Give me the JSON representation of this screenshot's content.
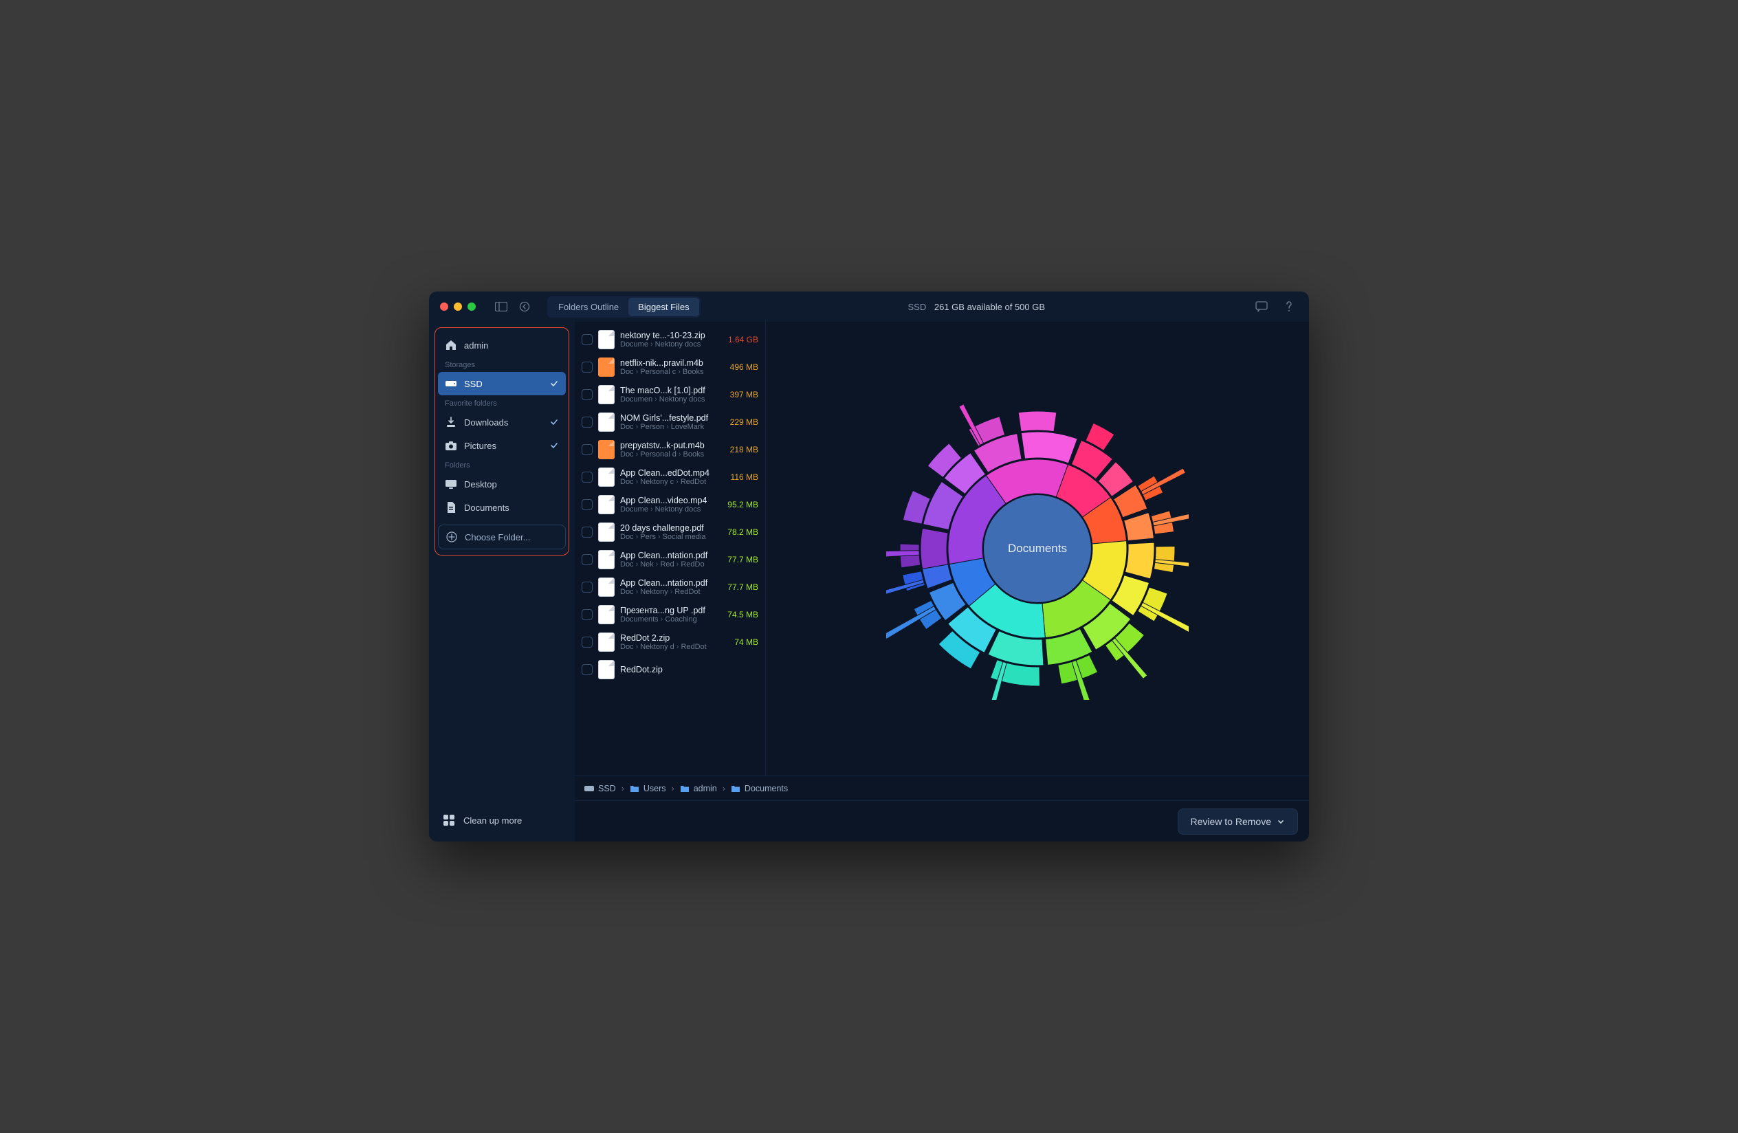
{
  "titlebar": {
    "tabs": {
      "outline": "Folders Outline",
      "biggest": "Biggest Files",
      "active": "biggest"
    },
    "storage_label": "SSD",
    "storage_status": "261 GB available of 500 GB"
  },
  "sidebar": {
    "user": {
      "label": "admin"
    },
    "sections": {
      "storages_label": "Storages",
      "favorites_label": "Favorite folders",
      "folders_label": "Folders"
    },
    "storages": [
      {
        "label": "SSD",
        "selected": true,
        "checked": true
      }
    ],
    "favorites": [
      {
        "label": "Downloads",
        "checked": true
      },
      {
        "label": "Pictures",
        "checked": true
      }
    ],
    "folders": [
      {
        "label": "Desktop"
      },
      {
        "label": "Documents"
      }
    ],
    "choose_folder": "Choose Folder...",
    "footer": "Clean up more"
  },
  "files": [
    {
      "name": "nektony te...-10-23.zip",
      "path": [
        "Docume",
        "Nektony docs"
      ],
      "size": "1.64 GB",
      "size_color": "#e84a2f",
      "icon": "zip"
    },
    {
      "name": "netflix-nik...pravil.m4b",
      "path": [
        "Doc",
        "Personal c",
        "Books"
      ],
      "size": "496 MB",
      "size_color": "#e8a62f",
      "icon": "orange"
    },
    {
      "name": "The macO...k [1.0].pdf",
      "path": [
        "Documen",
        "Nektony docs"
      ],
      "size": "397 MB",
      "size_color": "#e8a62f",
      "icon": "pdf"
    },
    {
      "name": "NOM Girls'...festyle.pdf",
      "path": [
        "Doc",
        "Person",
        "LoveMark"
      ],
      "size": "229 MB",
      "size_color": "#e8a62f",
      "icon": "pdf"
    },
    {
      "name": "prepyatstv...k-put.m4b",
      "path": [
        "Doc",
        "Personal d",
        "Books"
      ],
      "size": "218 MB",
      "size_color": "#e8a62f",
      "icon": "orange"
    },
    {
      "name": "App Clean...edDot.mp4",
      "path": [
        "Doc",
        "Nektony c",
        "RedDot"
      ],
      "size": "116 MB",
      "size_color": "#e8a62f",
      "icon": "mp4"
    },
    {
      "name": "App Clean...video.mp4",
      "path": [
        "Docume",
        "Nektony docs"
      ],
      "size": "95.2 MB",
      "size_color": "#a6e82f",
      "icon": "mp4"
    },
    {
      "name": "20 days challenge.pdf",
      "path": [
        "Doc",
        "Pers",
        "Social media"
      ],
      "size": "78.2 MB",
      "size_color": "#a6e82f",
      "icon": "pdf"
    },
    {
      "name": "App Clean...ntation.pdf",
      "path": [
        "Doc",
        "Nek",
        "Red",
        "RedDo"
      ],
      "size": "77.7 MB",
      "size_color": "#a6e82f",
      "icon": "pdf"
    },
    {
      "name": "App Clean...ntation.pdf",
      "path": [
        "Doc",
        "Nektony",
        "RedDot"
      ],
      "size": "77.7 MB",
      "size_color": "#a6e82f",
      "icon": "pdf"
    },
    {
      "name": "Презента...ng UP .pdf",
      "path": [
        "Documents",
        "Coaching"
      ],
      "size": "74.5 MB",
      "size_color": "#a6e82f",
      "icon": "pdf"
    },
    {
      "name": "RedDot 2.zip",
      "path": [
        "Doc",
        "Nektony d",
        "RedDot"
      ],
      "size": "74 MB",
      "size_color": "#a6e82f",
      "icon": "zip"
    },
    {
      "name": "RedDot.zip",
      "path": [
        ""
      ],
      "size": "",
      "size_color": "#a6e82f",
      "icon": "zip"
    }
  ],
  "chart": {
    "type": "sunburst",
    "center_label": "Documents",
    "center_color": "#3e6db3",
    "background_color": "#0b1526",
    "rings": [
      {
        "inner_r": 80,
        "outer_r": 130,
        "segments": [
          {
            "start": -100,
            "end": -35,
            "color": "#9a3fe0"
          },
          {
            "start": -35,
            "end": 20,
            "color": "#e843cf"
          },
          {
            "start": 20,
            "end": 55,
            "color": "#ff2f7a"
          },
          {
            "start": 55,
            "end": 85,
            "color": "#ff5a2f"
          },
          {
            "start": 85,
            "end": 125,
            "color": "#f5e72f"
          },
          {
            "start": 125,
            "end": 175,
            "color": "#8fe82f"
          },
          {
            "start": 175,
            "end": 230,
            "color": "#2fe8d4"
          },
          {
            "start": 230,
            "end": 260,
            "color": "#2f7ae8"
          }
        ]
      },
      {
        "inner_r": 132,
        "outer_r": 170,
        "segments": [
          {
            "start": -100,
            "end": -80,
            "color": "#8a35cc"
          },
          {
            "start": -78,
            "end": -55,
            "color": "#a052e6"
          },
          {
            "start": -53,
            "end": -35,
            "color": "#c45ff0"
          },
          {
            "start": -33,
            "end": -10,
            "color": "#e04fd6"
          },
          {
            "start": -8,
            "end": 20,
            "color": "#f55ae0"
          },
          {
            "start": 22,
            "end": 40,
            "color": "#ff2f7a"
          },
          {
            "start": 42,
            "end": 55,
            "color": "#ff4a8c"
          },
          {
            "start": 57,
            "end": 70,
            "color": "#ff6a3a"
          },
          {
            "start": 72,
            "end": 85,
            "color": "#ff8a4a"
          },
          {
            "start": 87,
            "end": 105,
            "color": "#ffd23a"
          },
          {
            "start": 107,
            "end": 125,
            "color": "#f0f03a"
          },
          {
            "start": 127,
            "end": 150,
            "color": "#9af03a"
          },
          {
            "start": 152,
            "end": 175,
            "color": "#7ae83a"
          },
          {
            "start": 177,
            "end": 205,
            "color": "#3ae8c8"
          },
          {
            "start": 207,
            "end": 230,
            "color": "#3ad8e8"
          },
          {
            "start": 232,
            "end": 248,
            "color": "#3a88e8"
          },
          {
            "start": 250,
            "end": 260,
            "color": "#3a6ae8"
          }
        ]
      },
      {
        "inner_r": 172,
        "outer_r": 200,
        "segments": [
          {
            "start": -98,
            "end": -88,
            "color": "#7a2fb8"
          },
          {
            "start": -78,
            "end": -65,
            "color": "#9548da"
          },
          {
            "start": -53,
            "end": -40,
            "color": "#bb55e8"
          },
          {
            "start": -30,
            "end": -16,
            "color": "#d848cc"
          },
          {
            "start": -8,
            "end": 8,
            "color": "#ef50d5"
          },
          {
            "start": 24,
            "end": 34,
            "color": "#ff2a6e"
          },
          {
            "start": 58,
            "end": 66,
            "color": "#ff5a2a"
          },
          {
            "start": 74,
            "end": 83,
            "color": "#ff7a3a"
          },
          {
            "start": 89,
            "end": 100,
            "color": "#f5c82a"
          },
          {
            "start": 109,
            "end": 122,
            "color": "#e8e82a"
          },
          {
            "start": 129,
            "end": 145,
            "color": "#8ce82a"
          },
          {
            "start": 154,
            "end": 170,
            "color": "#6ee02a"
          },
          {
            "start": 179,
            "end": 200,
            "color": "#2ae0bc"
          },
          {
            "start": 209,
            "end": 226,
            "color": "#2acce0"
          },
          {
            "start": 234,
            "end": 244,
            "color": "#2a7ae0"
          },
          {
            "start": 252,
            "end": 259,
            "color": "#2a5ae0"
          }
        ]
      }
    ],
    "spikes": [
      {
        "angle": -92,
        "len": 48,
        "width": 7,
        "color": "#9a3fe0"
      },
      {
        "angle": -28,
        "len": 36,
        "width": 6,
        "color": "#e843cf"
      },
      {
        "angle": 62,
        "len": 42,
        "width": 6,
        "color": "#ff6a3a"
      },
      {
        "angle": 78,
        "len": 62,
        "width": 6,
        "color": "#ff8a4a"
      },
      {
        "angle": 96,
        "len": 30,
        "width": 5,
        "color": "#ffd23a"
      },
      {
        "angle": 118,
        "len": 56,
        "width": 6,
        "color": "#f0f03a"
      },
      {
        "angle": 140,
        "len": 44,
        "width": 6,
        "color": "#9af03a"
      },
      {
        "angle": 162,
        "len": 60,
        "width": 7,
        "color": "#7ae83a"
      },
      {
        "angle": 196,
        "len": 36,
        "width": 6,
        "color": "#3ae8c8"
      },
      {
        "angle": 240,
        "len": 56,
        "width": 6,
        "color": "#3a88e8"
      },
      {
        "angle": 254,
        "len": 44,
        "width": 5,
        "color": "#3a6ae8"
      }
    ]
  },
  "breadcrumb": [
    {
      "label": "SSD",
      "icon": "disk"
    },
    {
      "label": "Users",
      "icon": "folder"
    },
    {
      "label": "admin",
      "icon": "folder"
    },
    {
      "label": "Documents",
      "icon": "folder"
    }
  ],
  "bottom": {
    "review_label": "Review to Remove"
  },
  "colors": {
    "window_bg": "#0e1a2e",
    "main_bg": "#0b1526",
    "text": "#c5d0de",
    "muted": "#6b7a8f",
    "accent": "#2a5fa5",
    "highlight_border": "#e84a2f"
  }
}
